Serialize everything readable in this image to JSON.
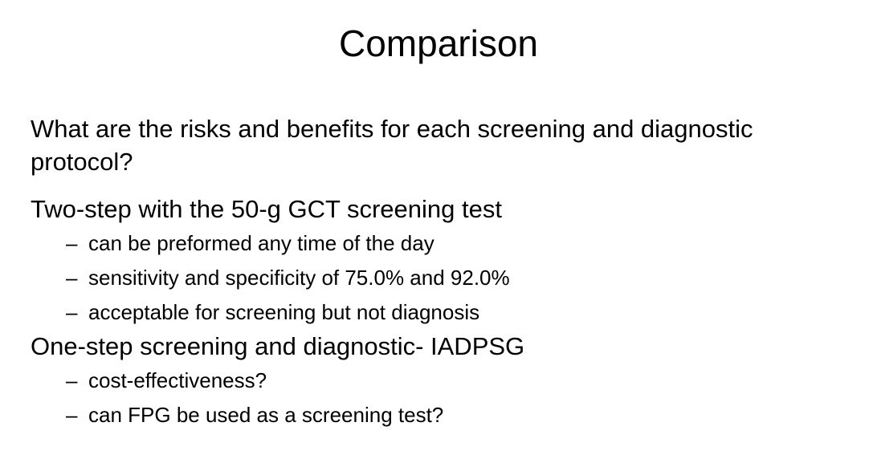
{
  "slide": {
    "title": "Comparison",
    "question": "What are the risks and benefits for each screening and diagnostic protocol?",
    "sections": [
      {
        "heading": "Two-step with the 50-g GCT screening test",
        "bullets": [
          "can be preformed any time of the day",
          "sensitivity and specificity of 75.0% and 92.0%",
          "acceptable for screening but not diagnosis"
        ]
      },
      {
        "heading": "One-step screening and diagnostic- IADPSG",
        "bullets": [
          "cost-effectiveness?",
          "can FPG be used as a screening test?"
        ]
      }
    ],
    "bullet_marker": "–"
  }
}
